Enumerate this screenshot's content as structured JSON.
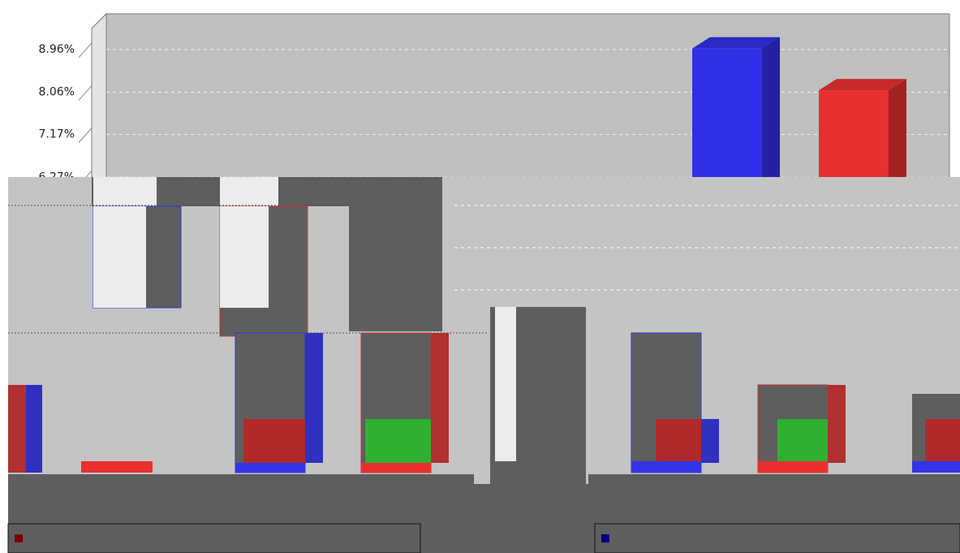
{
  "chart_data": {
    "type": "bar",
    "ylim": [
      0,
      9.66
    ],
    "yticks": [
      {
        "value": 6.27,
        "label": "6.27%"
      },
      {
        "value": 7.17,
        "label": "7.17%"
      },
      {
        "value": 8.06,
        "label": "8.06%"
      },
      {
        "value": 8.96,
        "label": "8.96%"
      }
    ],
    "grid": true,
    "series": [
      {
        "color": "#3030e8",
        "values": [
          8.98
        ]
      },
      {
        "color": "#e83030",
        "values": [
          8.1
        ]
      }
    ]
  }
}
